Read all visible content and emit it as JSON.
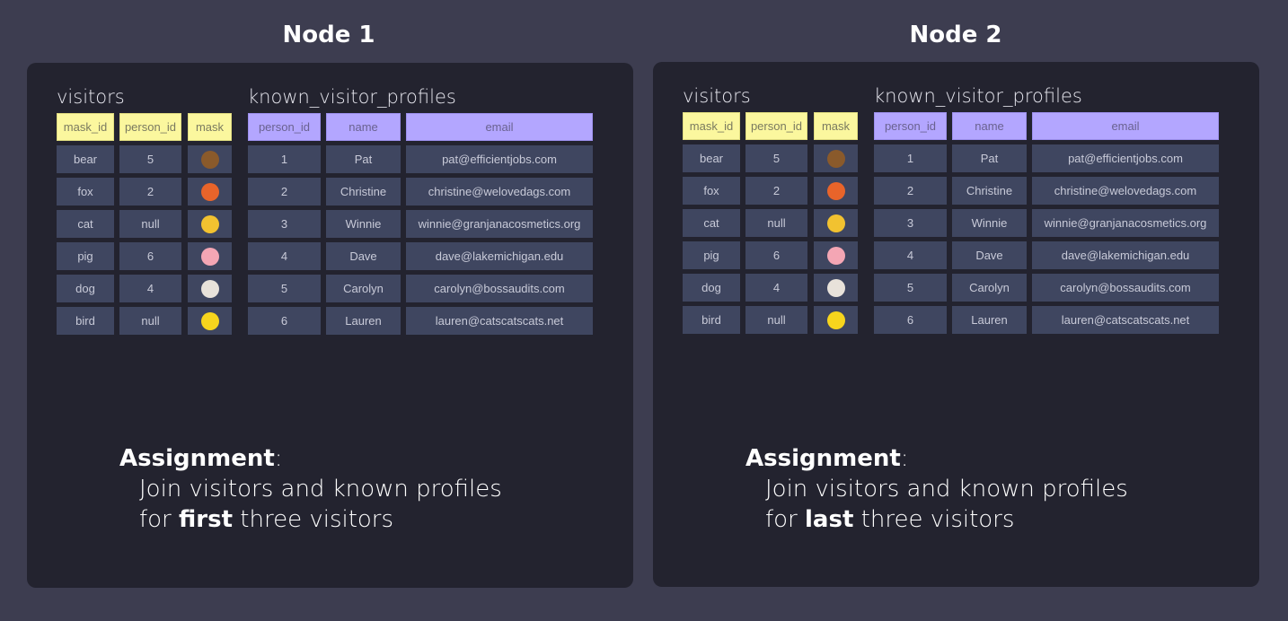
{
  "nodes": [
    {
      "title": "Node 1",
      "assignment": {
        "heading": "Assignment",
        "colon": ":",
        "line1": "Join visitors and known profiles",
        "line2_pre": "for ",
        "line2_bold": "first",
        "line2_post": " three visitors"
      }
    },
    {
      "title": "Node 2",
      "assignment": {
        "heading": "Assignment",
        "colon": ":",
        "line1": "Join visitors and known profiles",
        "line2_pre": "for ",
        "line2_bold": "last",
        "line2_post": " three visitors"
      }
    }
  ],
  "visitors": {
    "label": "visitors",
    "columns": [
      "mask_id",
      "person_id",
      "mask"
    ],
    "rows": [
      {
        "mask_id": "bear",
        "person_id": "5",
        "mask": "bear-face-icon",
        "color": "#8a5a2b"
      },
      {
        "mask_id": "fox",
        "person_id": "2",
        "mask": "fox-face-icon",
        "color": "#e8642a"
      },
      {
        "mask_id": "cat",
        "person_id": "null",
        "mask": "cat-face-icon",
        "color": "#f2c230"
      },
      {
        "mask_id": "pig",
        "person_id": "6",
        "mask": "pig-face-icon",
        "color": "#f4a6b4"
      },
      {
        "mask_id": "dog",
        "person_id": "4",
        "mask": "dog-face-icon",
        "color": "#e8e2da"
      },
      {
        "mask_id": "bird",
        "person_id": "null",
        "mask": "chick-icon",
        "color": "#f7d51d"
      }
    ]
  },
  "profiles": {
    "label": "known_visitor_profiles",
    "columns": [
      "person_id",
      "name",
      "email"
    ],
    "rows": [
      [
        "1",
        "Pat",
        "pat@efficientjobs.com"
      ],
      [
        "2",
        "Christine",
        "christine@welovedags.com"
      ],
      [
        "3",
        "Winnie",
        "winnie@granjanacosmetics.org"
      ],
      [
        "4",
        "Dave",
        "dave@lakemichigan.edu"
      ],
      [
        "5",
        "Carolyn",
        "carolyn@bossaudits.com"
      ],
      [
        "6",
        "Lauren",
        "lauren@catscatscats.net"
      ]
    ]
  },
  "colors": {
    "page_bg": "#3d3d50",
    "panel_bg": "#23232f",
    "visitor_header": "#fbf79e",
    "profile_header": "#b3a6ff",
    "cell_bg": "#3f4660"
  }
}
